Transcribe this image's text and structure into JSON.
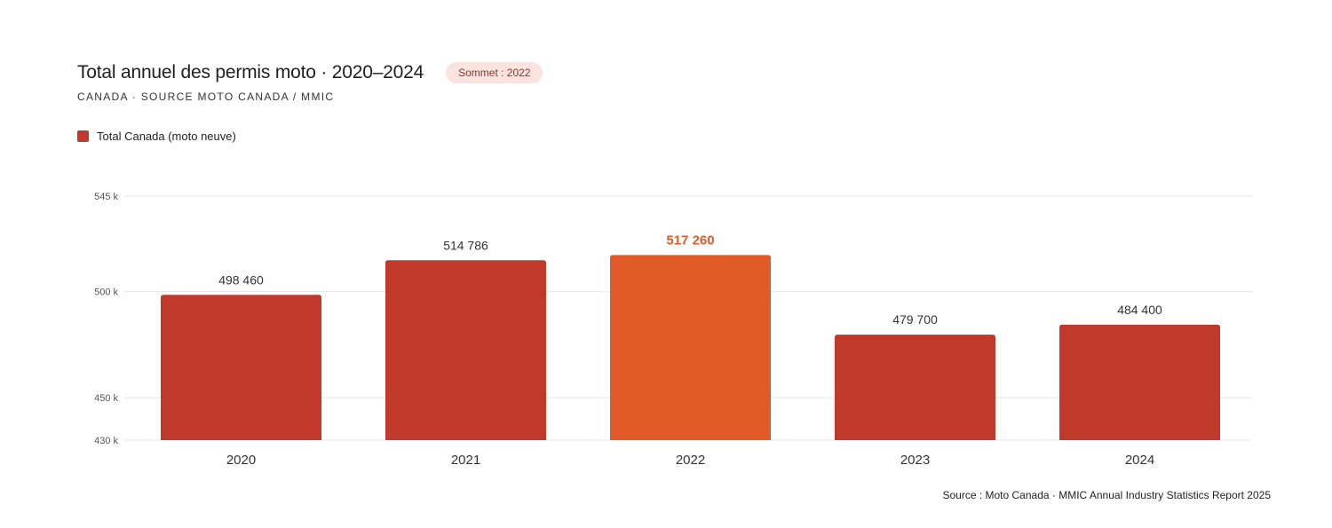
{
  "header": {
    "title": "Total annuel des permis moto · 2020–2024",
    "badge": "Sommet : 2022",
    "subtitle": "CANADA · SOURCE MOTO CANADA / MMIC"
  },
  "legend": {
    "label": "Total Canada (moto neuve)"
  },
  "footer": {
    "source": "Source : Moto Canada · MMIC Annual Industry Statistics Report 2025"
  },
  "colors": {
    "bar": "#c0392b",
    "highlight": "#e25a28",
    "grid": "#e6e6e6",
    "axis_text": "#555555",
    "label_text": "#333333"
  },
  "chart_data": {
    "type": "bar",
    "categories": [
      "2020",
      "2021",
      "2022",
      "2023",
      "2024"
    ],
    "series": [
      {
        "name": "Total Canada (moto neuve)",
        "values": [
          498460,
          514786,
          517260,
          479700,
          484400
        ]
      }
    ],
    "value_labels": [
      "498 460",
      "514 786",
      "517 260",
      "479 700",
      "484 400"
    ],
    "highlight_category": "2022",
    "ylim": [
      430000,
      545000
    ],
    "yticks": [
      430000,
      450000,
      500000,
      545000
    ],
    "ytick_labels": [
      "430 k",
      "450 k",
      "500 k",
      "545 k"
    ],
    "grid": true,
    "legend_position": "top-left"
  }
}
